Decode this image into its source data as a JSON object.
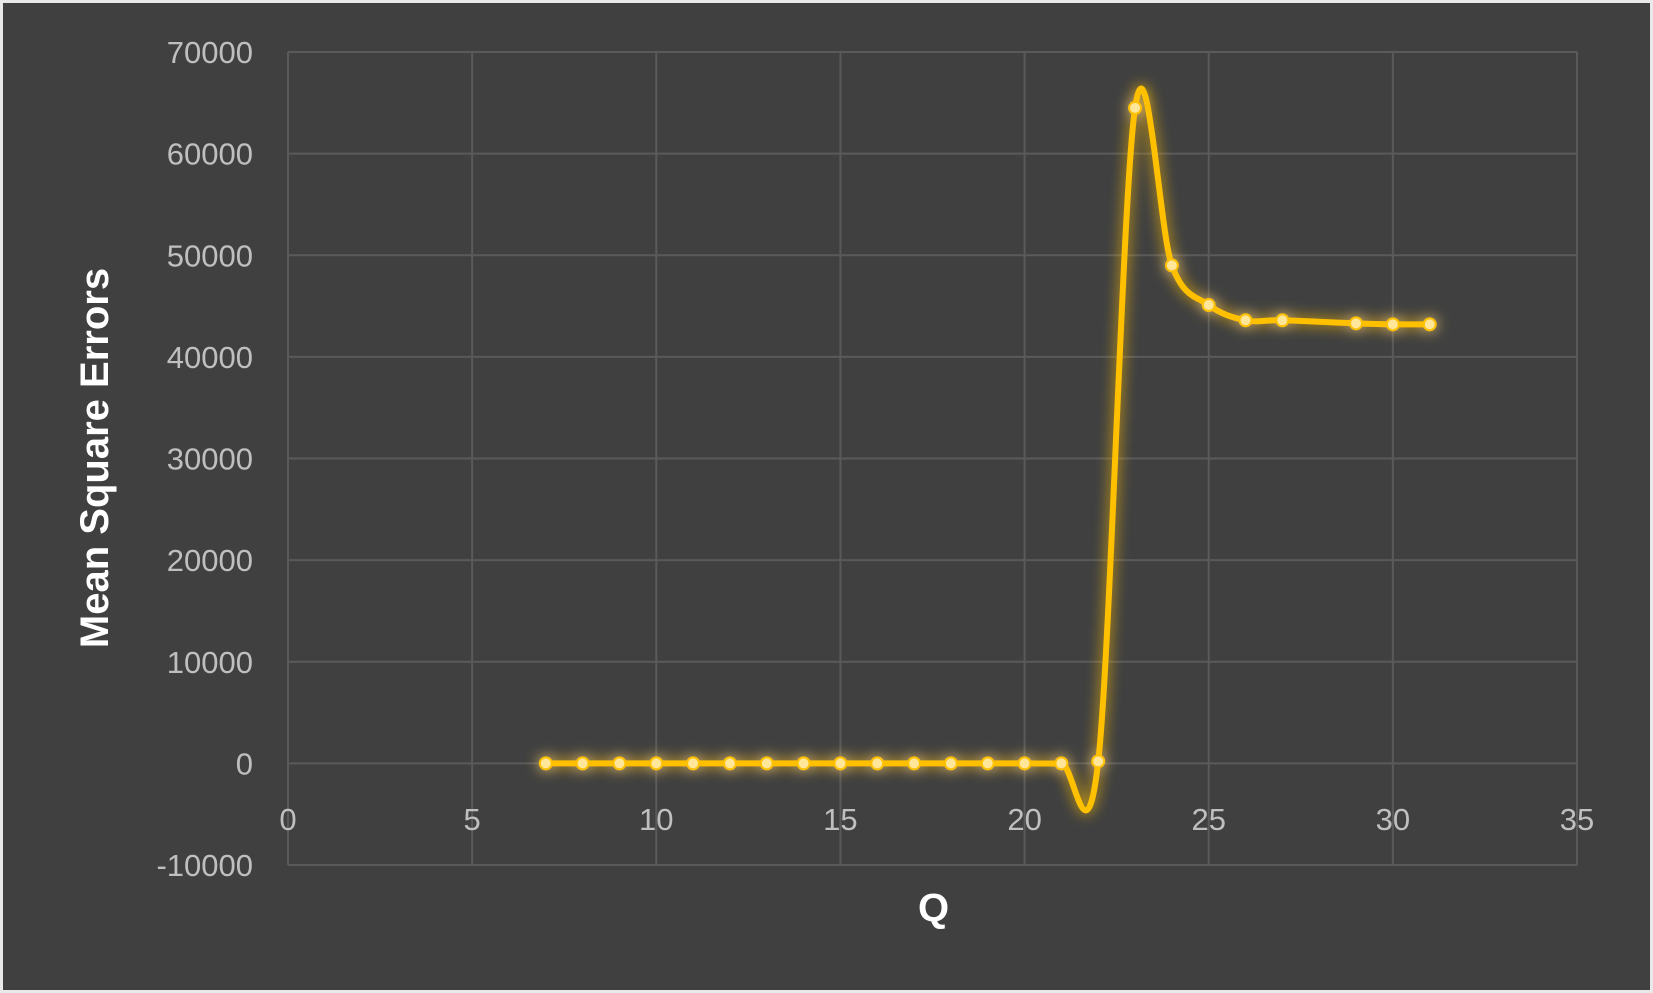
{
  "chart_data": {
    "type": "scatter",
    "title": "",
    "xlabel": "Q",
    "ylabel": "Mean Square Errors",
    "xlim": [
      0,
      35
    ],
    "ylim": [
      -10000,
      70000
    ],
    "xticks": [
      0,
      5,
      10,
      15,
      20,
      25,
      30,
      35
    ],
    "yticks": [
      -10000,
      0,
      10000,
      20000,
      30000,
      40000,
      50000,
      60000,
      70000
    ],
    "x_tick_labels": [
      "0",
      "5",
      "10",
      "15",
      "20",
      "25",
      "30",
      "35"
    ],
    "y_tick_labels": [
      "-10000",
      "0",
      "10000",
      "20000",
      "30000",
      "40000",
      "50000",
      "60000",
      "70000"
    ],
    "grid": true,
    "smooth": true,
    "series_color": "#ffc000",
    "marker_color": "#ffe699",
    "background_color": "#404040",
    "series": [
      {
        "x": [
          7,
          8,
          9,
          10,
          11,
          12,
          13,
          14,
          15,
          16,
          17,
          18,
          19,
          20,
          21,
          22,
          23,
          24,
          25,
          26,
          27,
          29,
          30,
          31
        ],
        "values": [
          0,
          0,
          0,
          0,
          0,
          0,
          0,
          0,
          0,
          0,
          0,
          0,
          0,
          0,
          0,
          200,
          64500,
          49000,
          45100,
          43600,
          43600,
          43300,
          43200,
          43200
        ]
      }
    ]
  }
}
